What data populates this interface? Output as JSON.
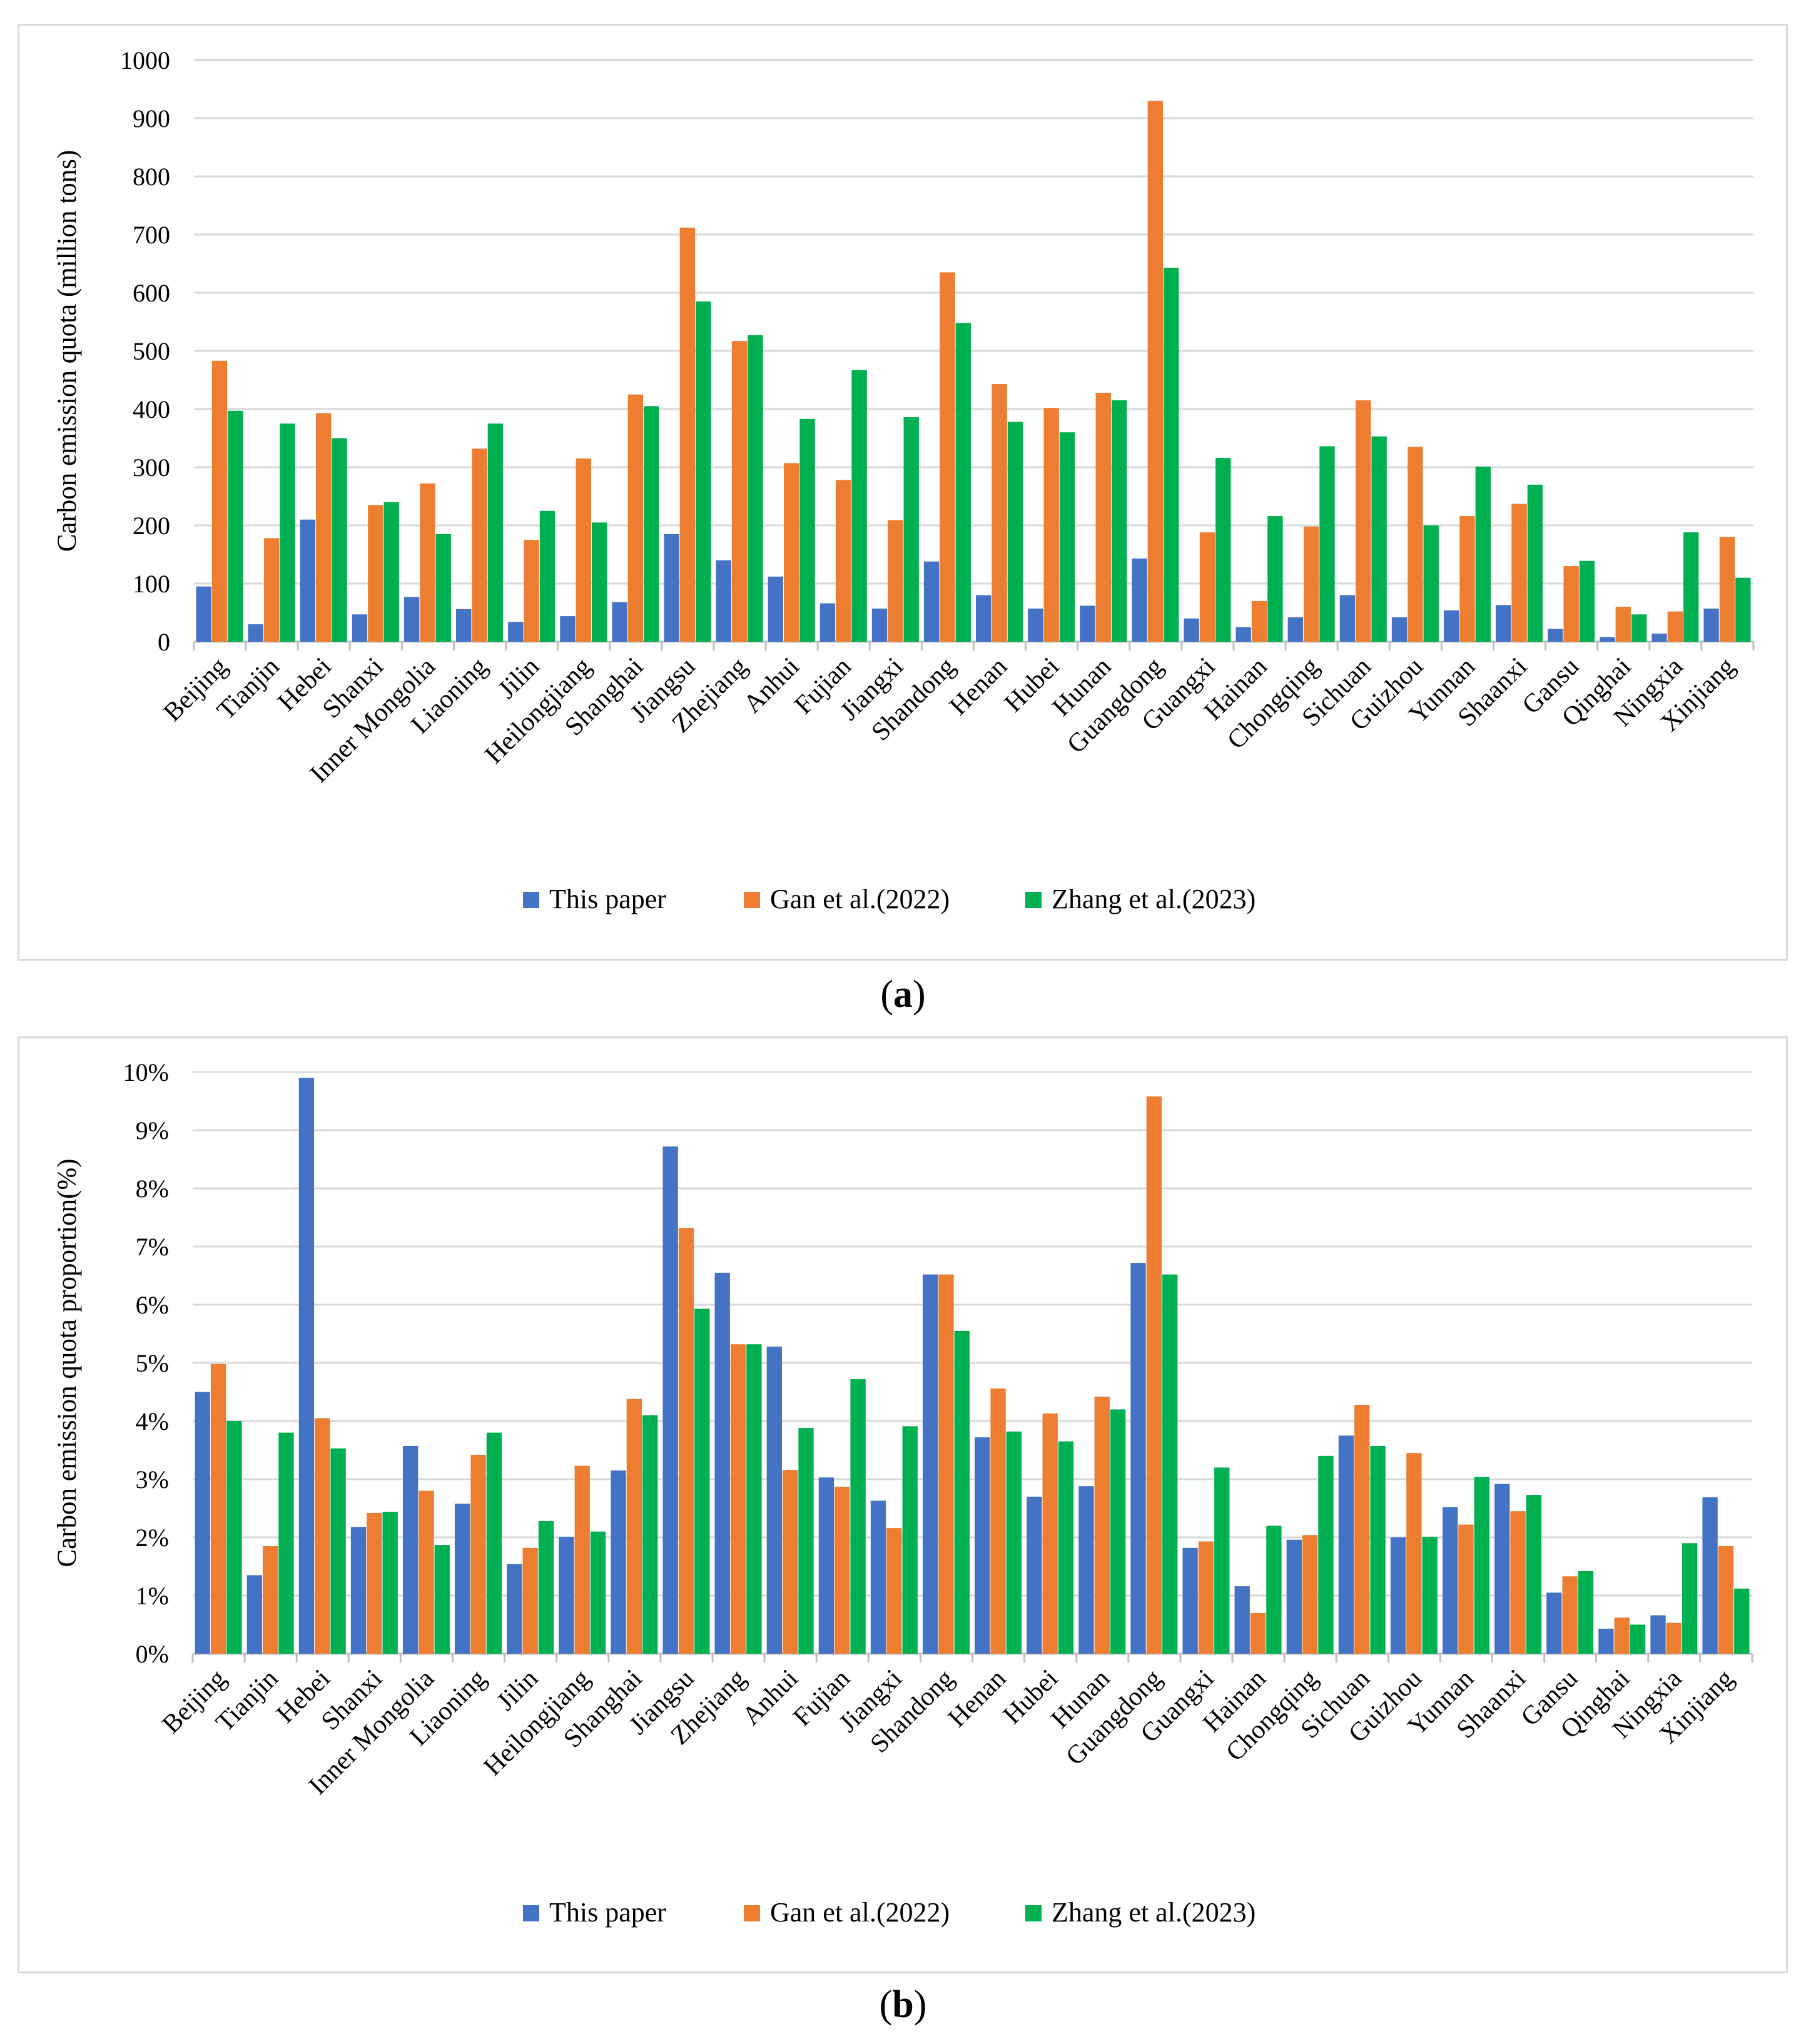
{
  "colors": {
    "this_paper": "#4472C4",
    "gan": "#ED7D31",
    "zhang": "#00B050",
    "grid": "#d9d9d9",
    "axis": "#bfbfbf"
  },
  "chart_data": [
    {
      "id": "a",
      "type": "bar",
      "ylabel": "Carbon emission quota (million tons)",
      "xlabel": "",
      "ylim": [
        0,
        1000
      ],
      "yticks": [
        0,
        100,
        200,
        300,
        400,
        500,
        600,
        700,
        800,
        900,
        1000
      ],
      "ytick_labels": [
        "0",
        "100",
        "200",
        "300",
        "400",
        "500",
        "600",
        "700",
        "800",
        "900",
        "1000"
      ],
      "grid": true,
      "legend": "bottom",
      "categories": [
        "Beijing",
        "Tianjin",
        "Hebei",
        "Shanxi",
        "Inner Mongolia",
        "Liaoning",
        "Jilin",
        "Heilongjiang",
        "Shanghai",
        "Jiangsu",
        "Zhejiang",
        "Anhui",
        "Fujian",
        "Jiangxi",
        "Shandong",
        "Henan",
        "Hubei",
        "Hunan",
        "Guangdong",
        "Guangxi",
        "Hainan",
        "Chongqing",
        "Sichuan",
        "Guizhou",
        "Yunnan",
        "Shaanxi",
        "Gansu",
        "Qinghai",
        "Ningxia",
        "Xinjiang"
      ],
      "series": [
        {
          "name": "This paper",
          "values": [
            95,
            30,
            210,
            47,
            77,
            56,
            34,
            44,
            68,
            185,
            140,
            112,
            66,
            57,
            138,
            80,
            57,
            62,
            143,
            40,
            25,
            42,
            80,
            42,
            54,
            63,
            22,
            8,
            14,
            57
          ]
        },
        {
          "name": "Gan et al.(2022)",
          "values": [
            483,
            178,
            393,
            235,
            272,
            332,
            175,
            315,
            425,
            712,
            517,
            307,
            278,
            209,
            635,
            443,
            402,
            428,
            930,
            188,
            70,
            198,
            415,
            335,
            216,
            237,
            130,
            60,
            52,
            180
          ]
        },
        {
          "name": "Zhang et al.(2023)",
          "values": [
            397,
            375,
            350,
            240,
            185,
            375,
            225,
            205,
            405,
            585,
            527,
            383,
            467,
            386,
            548,
            378,
            360,
            415,
            643,
            316,
            216,
            336,
            353,
            200,
            301,
            270,
            139,
            47,
            188,
            110
          ]
        }
      ],
      "caption_letter": "a"
    },
    {
      "id": "b",
      "type": "bar",
      "ylabel": "Carbon emission quota proportion(%)",
      "xlabel": "",
      "ylim": [
        0,
        10
      ],
      "yticks": [
        0,
        1,
        2,
        3,
        4,
        5,
        6,
        7,
        8,
        9,
        10
      ],
      "ytick_labels": [
        "0%",
        "1%",
        "2%",
        "3%",
        "4%",
        "5%",
        "6%",
        "7%",
        "8%",
        "9%",
        "10%"
      ],
      "grid": true,
      "legend": "bottom",
      "categories": [
        "Beijing",
        "Tianjin",
        "Hebei",
        "Shanxi",
        "Inner Mongolia",
        "Liaoning",
        "Jilin",
        "Heilongjiang",
        "Shanghai",
        "Jiangsu",
        "Zhejiang",
        "Anhui",
        "Fujian",
        "Jiangxi",
        "Shandong",
        "Henan",
        "Hubei",
        "Hunan",
        "Guangdong",
        "Guangxi",
        "Hainan",
        "Chongqing",
        "Sichuan",
        "Guizhou",
        "Yunnan",
        "Shaanxi",
        "Gansu",
        "Qinghai",
        "Ningxia",
        "Xinjiang"
      ],
      "series": [
        {
          "name": "This paper",
          "values": [
            4.5,
            1.35,
            9.9,
            2.18,
            3.57,
            2.58,
            1.54,
            2.01,
            3.15,
            8.72,
            6.55,
            5.28,
            3.03,
            2.63,
            6.52,
            3.72,
            2.7,
            2.88,
            6.72,
            1.82,
            1.16,
            1.96,
            3.75,
            2.0,
            2.52,
            2.92,
            1.05,
            0.43,
            0.66,
            2.69
          ]
        },
        {
          "name": "Gan et al.(2022)",
          "values": [
            4.98,
            1.85,
            4.05,
            2.42,
            2.8,
            3.42,
            1.82,
            3.23,
            4.38,
            7.32,
            5.32,
            3.16,
            2.87,
            2.16,
            6.52,
            4.56,
            4.13,
            4.42,
            9.58,
            1.93,
            0.7,
            2.04,
            4.28,
            3.45,
            2.22,
            2.45,
            1.33,
            0.62,
            0.53,
            1.85
          ]
        },
        {
          "name": "Zhang et al.(2023)",
          "values": [
            4.0,
            3.8,
            3.53,
            2.44,
            1.87,
            3.8,
            2.28,
            2.1,
            4.1,
            5.93,
            5.32,
            3.88,
            4.72,
            3.91,
            5.55,
            3.82,
            3.65,
            4.2,
            6.52,
            3.2,
            2.2,
            3.4,
            3.57,
            2.01,
            3.04,
            2.73,
            1.42,
            0.5,
            1.9,
            1.12
          ]
        }
      ],
      "caption_letter": "b"
    }
  ],
  "captions": {
    "a": "a",
    "b": "b"
  }
}
